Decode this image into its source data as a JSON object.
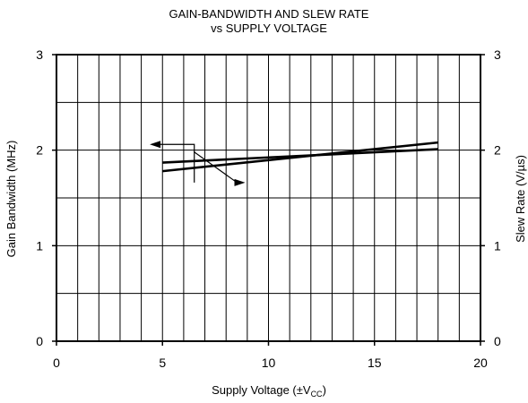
{
  "chart_data": {
    "type": "line",
    "title_lines": [
      "GAIN-BANDWIDTH AND SLEW RATE",
      "vs SUPPLY VOLTAGE"
    ],
    "xlabel_prefix": "Supply Voltage (±V",
    "xlabel_sub": "CC",
    "xlabel_suffix": ")",
    "ylabel_left": "Gain Bandwidth (MHz)",
    "ylabel_right": "Slew Rate (V/µs)",
    "xlim": [
      0,
      20
    ],
    "ylim_left": [
      0,
      3
    ],
    "ylim_right": [
      0,
      3
    ],
    "x_ticks": [
      0,
      5,
      10,
      15,
      20
    ],
    "y_ticks_left": [
      0,
      1,
      2,
      3
    ],
    "y_ticks_right": [
      0,
      1,
      2,
      3
    ],
    "x_minor_step": 1,
    "y_minor_step": 0.5,
    "grid": true,
    "series": [
      {
        "axis": "left",
        "x": [
          5,
          18
        ],
        "y": [
          1.87,
          2.01
        ]
      },
      {
        "axis": "right",
        "x": [
          5,
          18
        ],
        "y": [
          1.78,
          2.08
        ]
      }
    ],
    "annotations": [
      {
        "points": [
          [
            6.5,
            2.06
          ],
          [
            6.5,
            1.98
          ]
        ],
        "arrow_to": [
          4.4,
          2.06
        ],
        "direction": "left"
      },
      {
        "points": [
          [
            6.5,
            1.98
          ],
          [
            6.5,
            1.66
          ]
        ],
        "arrow_to": [
          8.9,
          1.66
        ],
        "direction": "right"
      }
    ]
  }
}
